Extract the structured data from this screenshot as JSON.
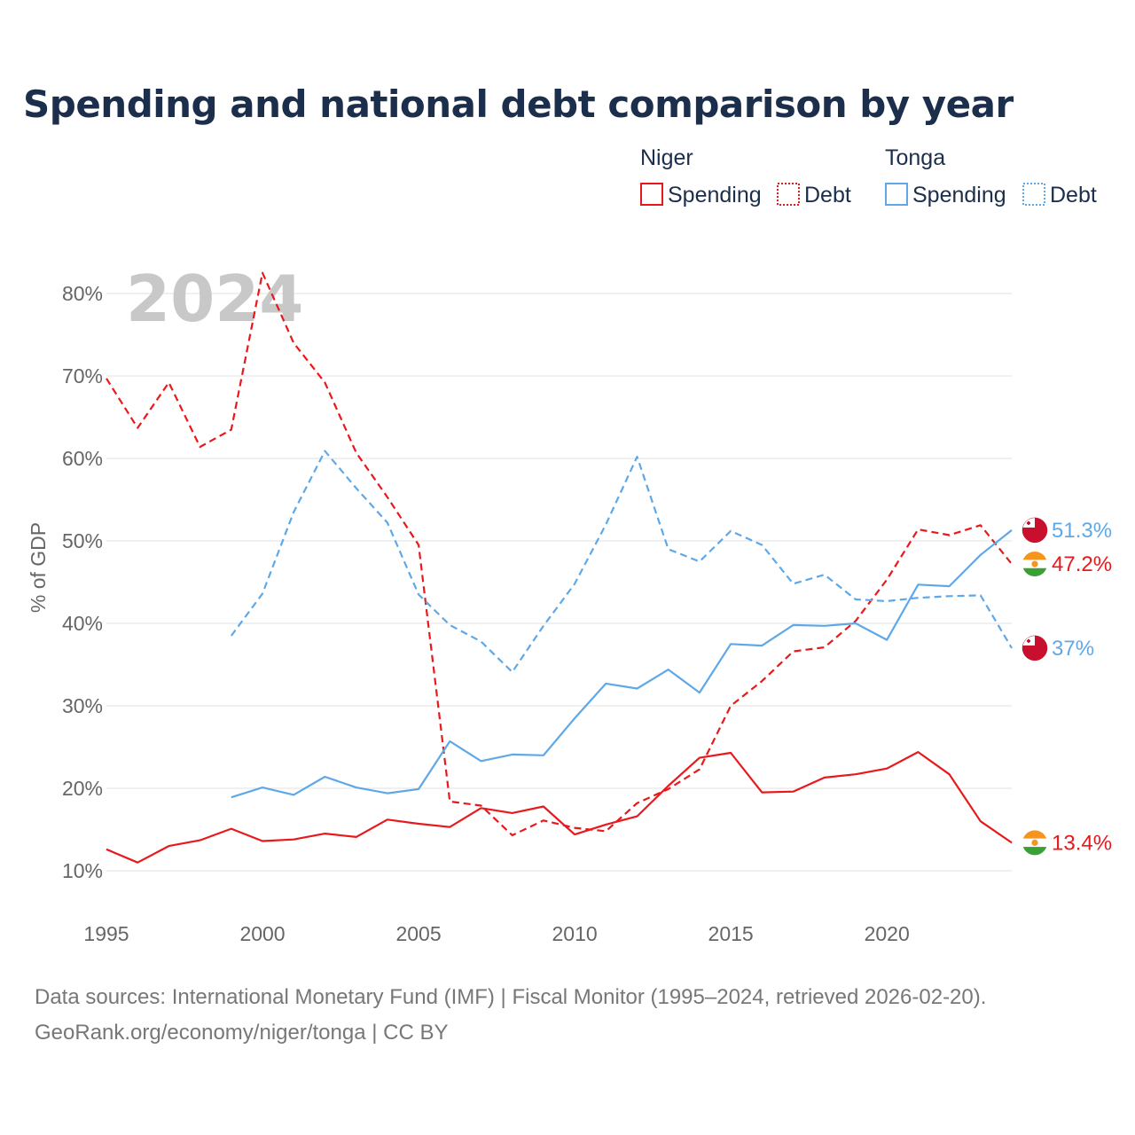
{
  "title": "Spending and national debt comparison by year",
  "big_year": "2024",
  "legend": {
    "niger": {
      "label": "Niger",
      "spending": "Spending",
      "debt": "Debt"
    },
    "tonga": {
      "label": "Tonga",
      "spending": "Spending",
      "debt": "Debt"
    }
  },
  "colors": {
    "niger": "#e8191c",
    "tonga": "#5fa8e8",
    "tonga_flag": "#c8102e",
    "niger_orange": "#f7941d",
    "niger_green": "#3aa035"
  },
  "source": {
    "line1": "Data sources: International Monetary Fund (IMF) | Fiscal Monitor (1995–2024, retrieved 2026-02-20).",
    "line2": "GeoRank.org/economy/niger/tonga | CC BY"
  },
  "chart_data": {
    "type": "line",
    "title": "Spending and national debt comparison by year",
    "xlabel": "",
    "ylabel": "% of GDP",
    "xlim": [
      1995,
      2024
    ],
    "ylim": [
      10,
      80
    ],
    "x_ticks": [
      "1995",
      "2000",
      "2005",
      "2010",
      "2015",
      "2020"
    ],
    "y_ticks": [
      "10%",
      "20%",
      "30%",
      "40%",
      "50%",
      "60%",
      "70%",
      "80%"
    ],
    "series": [
      {
        "name": "Niger Debt",
        "country": "niger",
        "style": "dashed",
        "x": [
          1995,
          1996,
          1997,
          1998,
          1999,
          2000,
          2001,
          2002,
          2003,
          2004,
          2005,
          2006,
          2007,
          2008,
          2009,
          2010,
          2011,
          2012,
          2013,
          2014,
          2015,
          2016,
          2017,
          2018,
          2019,
          2020,
          2021,
          2022,
          2023,
          2024
        ],
        "values": [
          69.7,
          63.7,
          69.2,
          61.4,
          63.5,
          82.5,
          74.0,
          69.2,
          60.7,
          55.3,
          49.5,
          18.4,
          17.9,
          14.3,
          16.1,
          15.2,
          14.8,
          18.2,
          19.9,
          22.3,
          30.0,
          33.0,
          36.6,
          37.1,
          40.3,
          45.3,
          51.4,
          50.7,
          51.9,
          47.2
        ],
        "end_label": "47.2%"
      },
      {
        "name": "Niger Spending",
        "country": "niger",
        "style": "solid",
        "x": [
          1995,
          1996,
          1997,
          1998,
          1999,
          2000,
          2001,
          2002,
          2003,
          2004,
          2005,
          2006,
          2007,
          2008,
          2009,
          2010,
          2011,
          2012,
          2013,
          2014,
          2015,
          2016,
          2017,
          2018,
          2019,
          2020,
          2021,
          2022,
          2023,
          2024
        ],
        "values": [
          12.6,
          11.0,
          13.0,
          13.7,
          15.1,
          13.6,
          13.8,
          14.5,
          14.1,
          16.2,
          15.7,
          15.3,
          17.6,
          17.0,
          17.8,
          14.4,
          15.6,
          16.6,
          20.3,
          23.7,
          24.3,
          19.5,
          19.6,
          21.3,
          21.7,
          22.4,
          24.4,
          21.7,
          16.0,
          13.4
        ],
        "end_label": "13.4%"
      },
      {
        "name": "Tonga Debt",
        "country": "tonga",
        "style": "dashed",
        "x": [
          1999,
          2000,
          2001,
          2002,
          2003,
          2004,
          2005,
          2006,
          2007,
          2008,
          2009,
          2010,
          2011,
          2012,
          2013,
          2014,
          2015,
          2016,
          2017,
          2018,
          2019,
          2020,
          2021,
          2022,
          2023,
          2024
        ],
        "values": [
          38.5,
          43.6,
          53.5,
          60.9,
          56.4,
          52.2,
          43.5,
          39.8,
          37.8,
          34.1,
          39.7,
          44.8,
          52.0,
          60.2,
          49.0,
          47.5,
          51.2,
          49.5,
          44.8,
          45.9,
          42.9,
          42.7,
          43.1,
          43.3,
          43.4,
          37.0
        ],
        "end_label": "37%"
      },
      {
        "name": "Tonga Spending",
        "country": "tonga",
        "style": "solid",
        "x": [
          1999,
          2000,
          2001,
          2002,
          2003,
          2004,
          2005,
          2006,
          2007,
          2008,
          2009,
          2010,
          2011,
          2012,
          2013,
          2014,
          2015,
          2016,
          2017,
          2018,
          2019,
          2020,
          2021,
          2022,
          2023,
          2024
        ],
        "values": [
          18.9,
          20.1,
          19.2,
          21.4,
          20.1,
          19.4,
          19.9,
          25.7,
          23.3,
          24.1,
          24.0,
          28.5,
          32.7,
          32.1,
          34.4,
          31.6,
          37.5,
          37.3,
          39.8,
          39.7,
          40.0,
          38.0,
          44.7,
          44.5,
          48.3,
          51.3
        ],
        "end_label": "51.3%"
      }
    ]
  }
}
